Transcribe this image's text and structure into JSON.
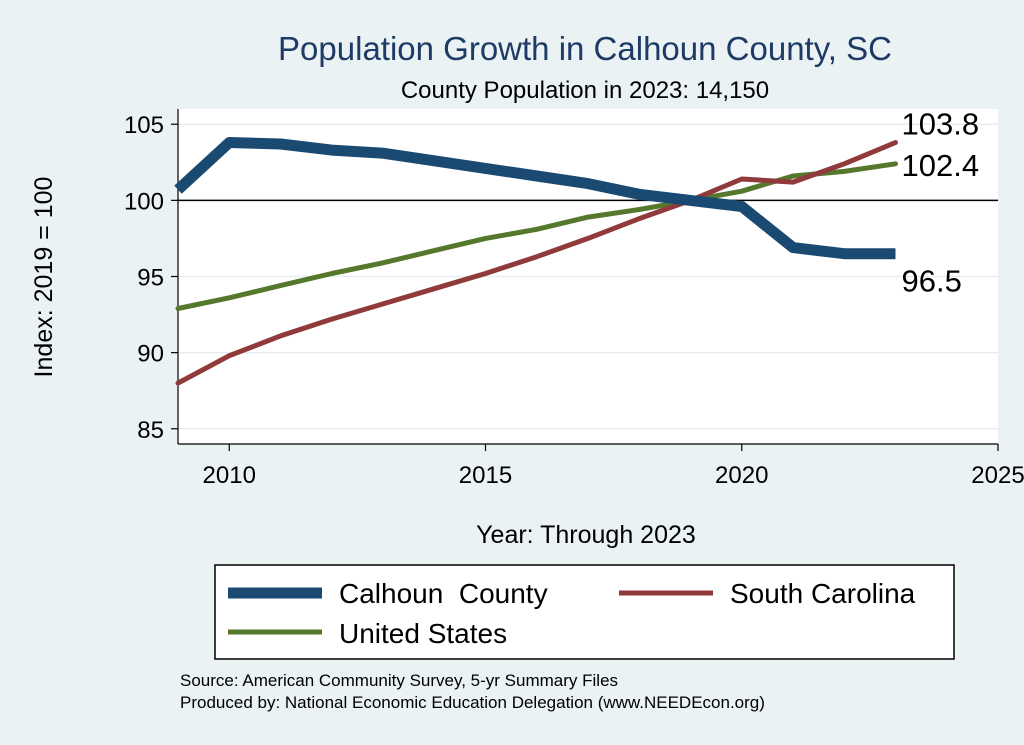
{
  "chart_data": {
    "type": "line",
    "title": "Population Growth in Calhoun County, SC",
    "subtitle": "County Population in 2023: 14,150",
    "xlabel": "Year: Through 2023",
    "ylabel": "Index: 2019 = 100",
    "xlim": [
      2009,
      2025
    ],
    "ylim": [
      84,
      106
    ],
    "xticks": [
      2010,
      2015,
      2020,
      2025
    ],
    "yticks": [
      85,
      90,
      95,
      100,
      105
    ],
    "reference_line": 100,
    "grid": true,
    "legend_position": "bottom",
    "series": [
      {
        "name": "Calhoun  County",
        "color": "#1a4a72",
        "x": [
          2009,
          2010,
          2011,
          2012,
          2013,
          2014,
          2015,
          2016,
          2017,
          2018,
          2019,
          2020,
          2021,
          2022,
          2023
        ],
        "values": [
          100.7,
          103.8,
          103.7,
          103.3,
          103.1,
          102.6,
          102.1,
          101.6,
          101.1,
          100.4,
          100.0,
          99.6,
          96.9,
          96.5,
          96.5
        ],
        "end_label": "96.5"
      },
      {
        "name": "South Carolina",
        "color": "#903a3c",
        "x": [
          2009,
          2010,
          2011,
          2012,
          2013,
          2014,
          2015,
          2016,
          2017,
          2018,
          2019,
          2020,
          2021,
          2022,
          2023
        ],
        "values": [
          88.0,
          89.8,
          91.1,
          92.2,
          93.2,
          94.2,
          95.2,
          96.3,
          97.5,
          98.8,
          100.0,
          101.4,
          101.2,
          102.4,
          103.8
        ],
        "end_label": "103.8"
      },
      {
        "name": "United States",
        "color": "#56782c",
        "x": [
          2009,
          2010,
          2011,
          2012,
          2013,
          2014,
          2015,
          2016,
          2017,
          2018,
          2019,
          2020,
          2021,
          2022,
          2023
        ],
        "values": [
          92.9,
          93.6,
          94.4,
          95.2,
          95.9,
          96.7,
          97.5,
          98.1,
          98.9,
          99.4,
          100.0,
          100.6,
          101.6,
          101.9,
          102.4
        ],
        "end_label": "102.4"
      }
    ],
    "notes": [
      "Source: American Community Survey, 5-yr Summary Files",
      "Produced by: National Economic Education Delegation (www.NEEDEcon.org)"
    ]
  }
}
